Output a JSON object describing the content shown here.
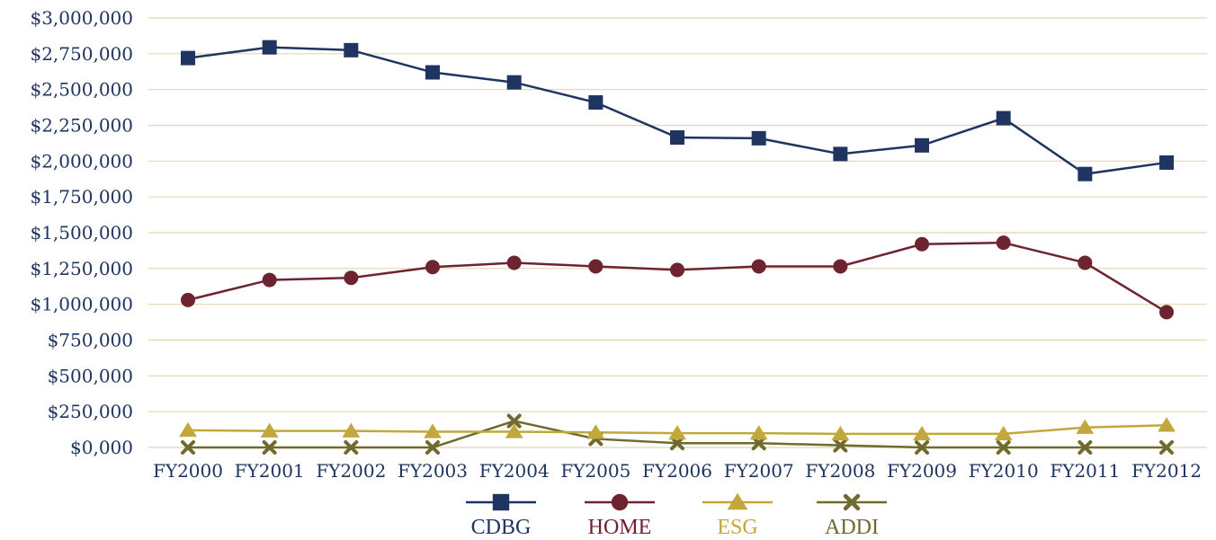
{
  "chart_data": {
    "type": "line",
    "title": "",
    "xlabel": "",
    "ylabel": "",
    "categories": [
      "FY2000",
      "FY2001",
      "FY2002",
      "FY2003",
      "FY2004",
      "FY2005",
      "FY2006",
      "FY2007",
      "FY2008",
      "FY2009",
      "FY2010",
      "FY2011",
      "FY2012"
    ],
    "y_ticks": [
      0,
      250000,
      500000,
      750000,
      1000000,
      1250000,
      1500000,
      1750000,
      2000000,
      2250000,
      2500000,
      2750000,
      3000000
    ],
    "y_tick_labels": [
      "$0,000",
      "$250,000",
      "$500,000",
      "$750,000",
      "$1,000,000",
      "$1,250,000",
      "$1,500,000",
      "$1,750,000",
      "$2,000,000",
      "$2,250,000",
      "$2,500,000",
      "$2,750,000",
      "$3,000,000"
    ],
    "ylim": [
      0,
      3000000
    ],
    "grid": true,
    "legend_position": "bottom",
    "series": [
      {
        "name": "CDBG",
        "marker": "square",
        "color": "#1f3461",
        "values": [
          2720000,
          2795000,
          2775000,
          2620000,
          2550000,
          2410000,
          2165000,
          2160000,
          2050000,
          2110000,
          2300000,
          1910000,
          1990000
        ]
      },
      {
        "name": "HOME",
        "marker": "circle",
        "color": "#6e2330",
        "values": [
          1030000,
          1170000,
          1185000,
          1260000,
          1290000,
          1265000,
          1240000,
          1265000,
          1265000,
          1420000,
          1430000,
          1290000,
          945000
        ]
      },
      {
        "name": "ESG",
        "marker": "triangle",
        "color": "#c2a83c",
        "values": [
          120000,
          115000,
          115000,
          110000,
          110000,
          105000,
          100000,
          100000,
          95000,
          95000,
          95000,
          140000,
          155000
        ]
      },
      {
        "name": "ADDI",
        "marker": "x",
        "color": "#6f6a2e",
        "values": [
          0,
          0,
          0,
          0,
          185000,
          60000,
          30000,
          30000,
          15000,
          0,
          0,
          0,
          0
        ]
      }
    ]
  }
}
